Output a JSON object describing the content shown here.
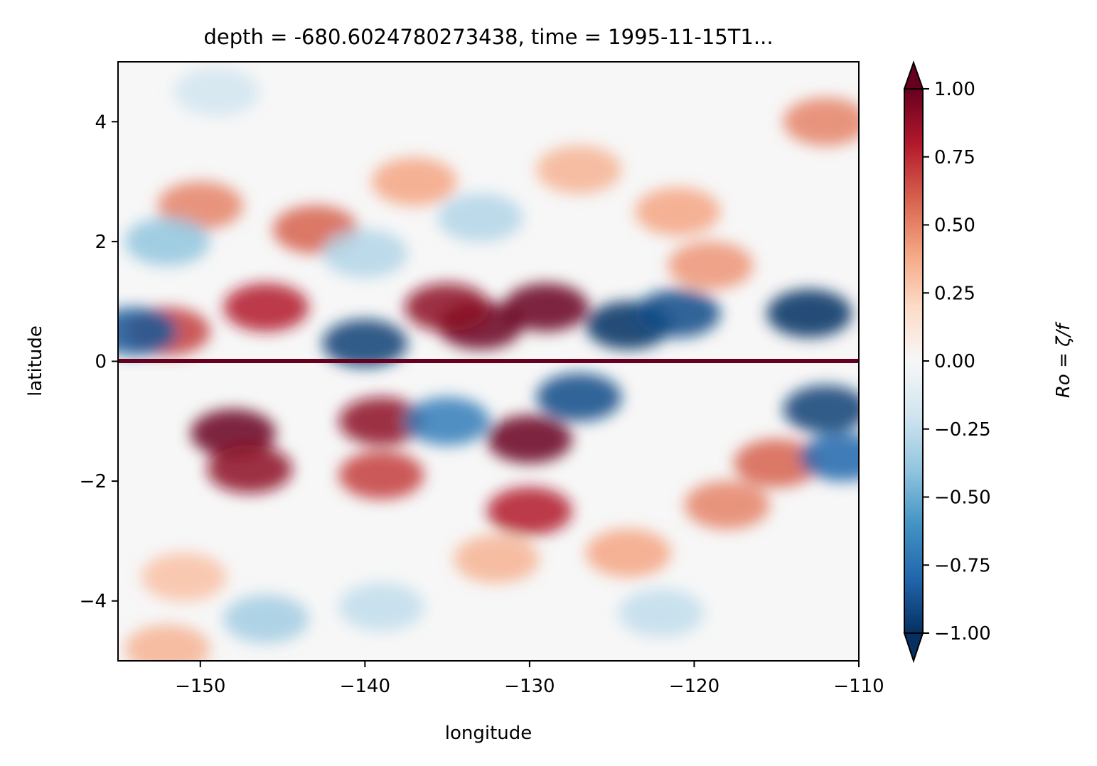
{
  "chart_data": {
    "type": "heatmap",
    "title": "depth = -680.6024780273438, time = 1995-11-15T1...",
    "xlabel": "longitude",
    "ylabel": "latitude",
    "xlim": [
      -155,
      -110
    ],
    "ylim": [
      -5,
      5
    ],
    "xticks": [
      -150,
      -140,
      -130,
      -120,
      -110
    ],
    "xtick_labels": [
      "−150",
      "−140",
      "−130",
      "−120",
      "−110"
    ],
    "yticks": [
      -4,
      -2,
      0,
      2,
      4
    ],
    "ytick_labels": [
      "−4",
      "−2",
      "0",
      "2",
      "4"
    ],
    "grid": false,
    "colormap": "RdBu_r",
    "colorbar": {
      "label": "Ro = ζ/f",
      "vmin": -1.0,
      "vmax": 1.0,
      "extend": "both",
      "ticks": [
        1.0,
        0.75,
        0.5,
        0.25,
        0.0,
        -0.25,
        -0.5,
        -0.75,
        -1.0
      ],
      "tick_labels": [
        "1.00",
        "0.75",
        "0.50",
        "0.25",
        "0.00",
        "−0.25",
        "−0.50",
        "−0.75",
        "−1.00"
      ],
      "colors": [
        "#053061",
        "#2166ac",
        "#4393c3",
        "#92c5de",
        "#d1e5f0",
        "#f7f7f7",
        "#fddbc7",
        "#f4a582",
        "#d6604d",
        "#b2182b",
        "#67001f"
      ]
    },
    "field_features": [
      {
        "lon": -148,
        "lat": -1.2,
        "value": 1.0
      },
      {
        "lon": -147,
        "lat": -1.8,
        "value": 0.9
      },
      {
        "lon": -139,
        "lat": -1.0,
        "value": 0.9
      },
      {
        "lon": -139,
        "lat": -1.9,
        "value": 0.7
      },
      {
        "lon": -130,
        "lat": -1.3,
        "value": 1.0
      },
      {
        "lon": -130,
        "lat": -2.5,
        "value": 0.8
      },
      {
        "lon": -133,
        "lat": 0.6,
        "value": 1.0
      },
      {
        "lon": -129,
        "lat": 0.9,
        "value": 1.0
      },
      {
        "lon": -135,
        "lat": 0.9,
        "value": 0.9
      },
      {
        "lon": -146,
        "lat": 0.9,
        "value": 0.8
      },
      {
        "lon": -152,
        "lat": 0.5,
        "value": 0.7
      },
      {
        "lon": -143,
        "lat": 2.2,
        "value": 0.6
      },
      {
        "lon": -150,
        "lat": 2.6,
        "value": 0.5
      },
      {
        "lon": -137,
        "lat": 3.0,
        "value": 0.4
      },
      {
        "lon": -127,
        "lat": 3.2,
        "value": 0.35
      },
      {
        "lon": -121,
        "lat": 2.5,
        "value": 0.4
      },
      {
        "lon": -119,
        "lat": 1.6,
        "value": 0.45
      },
      {
        "lon": -115,
        "lat": -1.7,
        "value": 0.6
      },
      {
        "lon": -118,
        "lat": -2.4,
        "value": 0.5
      },
      {
        "lon": -124,
        "lat": -3.2,
        "value": 0.4
      },
      {
        "lon": -132,
        "lat": -3.3,
        "value": 0.35
      },
      {
        "lon": -112,
        "lat": 4.0,
        "value": 0.5
      },
      {
        "lon": -140,
        "lat": 0.3,
        "value": -0.95
      },
      {
        "lon": -124,
        "lat": 0.6,
        "value": -1.0
      },
      {
        "lon": -121,
        "lat": 0.8,
        "value": -0.9
      },
      {
        "lon": -127,
        "lat": -0.6,
        "value": -0.9
      },
      {
        "lon": -113,
        "lat": 0.8,
        "value": -1.0
      },
      {
        "lon": -112,
        "lat": -0.8,
        "value": -0.95
      },
      {
        "lon": -111,
        "lat": -1.6,
        "value": -0.8
      },
      {
        "lon": -154,
        "lat": 0.5,
        "value": -0.85
      },
      {
        "lon": -135,
        "lat": -1.0,
        "value": -0.7
      },
      {
        "lon": -152,
        "lat": 2.0,
        "value": -0.4
      },
      {
        "lon": -140,
        "lat": 1.8,
        "value": -0.3
      },
      {
        "lon": -133,
        "lat": 2.4,
        "value": -0.3
      },
      {
        "lon": -146,
        "lat": -4.3,
        "value": -0.35
      },
      {
        "lon": -139,
        "lat": -4.1,
        "value": -0.25
      },
      {
        "lon": -122,
        "lat": -4.2,
        "value": -0.25
      },
      {
        "lon": -149,
        "lat": 4.5,
        "value": -0.2
      },
      {
        "lon": -151,
        "lat": -3.6,
        "value": 0.3
      },
      {
        "lon": -152,
        "lat": -4.8,
        "value": 0.35
      }
    ]
  }
}
